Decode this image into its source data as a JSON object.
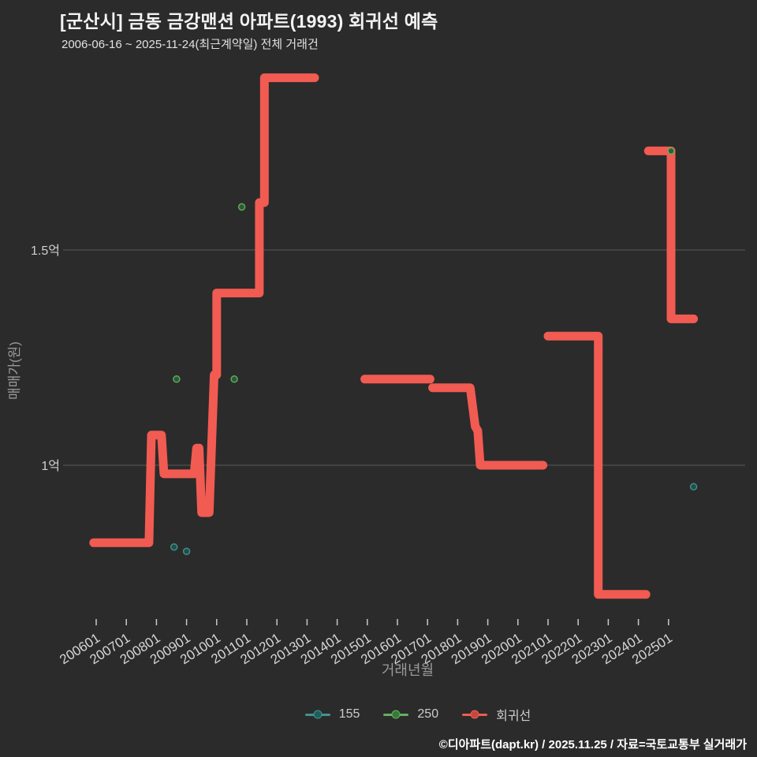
{
  "header": {
    "title": "[군산시] 금동 금강맨션 아파트(1993) 회귀선 예측",
    "subtitle": "2006-06-16 ~ 2025-11-24(최근계약일) 전체 거래건"
  },
  "footer": {
    "text": "©디아파트(dapt.kr) / 2025.11.25 / 자료=국토교통부 실거래가"
  },
  "colors": {
    "background": "#2b2b2b",
    "red": "#f15b52",
    "red_dot": "#c24842",
    "teal": "#45938e",
    "teal_dot": "#1d5f5c",
    "teal_fill": "#1d524d",
    "green": "#63b05f",
    "green_dot": "#377a3b",
    "green_fill": "#2c5c35",
    "grid": "#5a5a5a",
    "tick_mark": "#c9c9c9",
    "tick_text": "#d6d6d6",
    "y_tick_text": "#d0d0d0",
    "axis_title": "#999999",
    "legend_text": "#cccccc"
  },
  "chart_data": {
    "type": "line",
    "title": "[군산시] 금동 금강맨션 아파트(1993) 회귀선 예측",
    "xlabel": "거래년월",
    "ylabel": "매매가(원)",
    "y_unit": "억원",
    "grid": "horizontal-only",
    "legend_position": "bottom-center",
    "y_ticks": [
      {
        "label": "1.5억",
        "value": 1.5
      },
      {
        "label": "1억",
        "value": 1.0
      }
    ],
    "x_ticks": [
      "200601",
      "200701",
      "200801",
      "200901",
      "201001",
      "201101",
      "201201",
      "201301",
      "201401",
      "201501",
      "201601",
      "201701",
      "201801",
      "201901",
      "202001",
      "202101",
      "202201",
      "202301",
      "202401",
      "202501"
    ],
    "series": [
      {
        "name": "155",
        "kind": "scatter",
        "color_key": "teal",
        "points": [
          [
            "2008-08",
            0.81
          ],
          [
            "2009-01",
            0.8
          ],
          [
            "2025-11",
            0.95
          ]
        ]
      },
      {
        "name": "250",
        "kind": "scatter",
        "color_key": "green",
        "points": [
          [
            "2008-09",
            1.2
          ],
          [
            "2010-08",
            1.2
          ],
          [
            "2010-11",
            1.6
          ],
          [
            "2025-02",
            1.73
          ]
        ]
      },
      {
        "name": "회귀선",
        "kind": "step-line",
        "color_key": "red",
        "segments": [
          [
            [
              "2005-12",
              0.82
            ],
            [
              "2007-10",
              0.82
            ],
            [
              "2007-11",
              1.07
            ],
            [
              "2008-03",
              1.07
            ],
            [
              "2008-04",
              0.98
            ],
            [
              "2009-04",
              0.98
            ],
            [
              "2009-05",
              1.04
            ],
            [
              "2009-06",
              1.04
            ],
            [
              "2009-07",
              0.89
            ],
            [
              "2009-10",
              0.89
            ],
            [
              "2009-12",
              1.21
            ],
            [
              "2010-01",
              1.21
            ],
            [
              "2010-01",
              1.4
            ],
            [
              "2011-06",
              1.4
            ],
            [
              "2011-06",
              1.61
            ],
            [
              "2011-08",
              1.61
            ],
            [
              "2011-08",
              1.9
            ],
            [
              "2013-04",
              1.9
            ]
          ],
          [
            [
              "2014-12",
              1.2
            ],
            [
              "2017-02",
              1.2
            ]
          ],
          [
            [
              "2017-03",
              1.18
            ],
            [
              "2018-06",
              1.18
            ],
            [
              "2018-08",
              1.09
            ],
            [
              "2018-09",
              1.08
            ],
            [
              "2018-10",
              1.0
            ],
            [
              "2020-11",
              1.0
            ]
          ],
          [
            [
              "2021-01",
              1.3
            ],
            [
              "2022-09",
              1.3
            ],
            [
              "2022-09",
              0.7
            ],
            [
              "2024-04",
              0.7
            ]
          ],
          [
            [
              "2024-05",
              1.73
            ],
            [
              "2025-02",
              1.73
            ],
            [
              "2025-02",
              1.34
            ],
            [
              "2025-11",
              1.34
            ]
          ]
        ]
      }
    ],
    "legend": [
      {
        "label": "155",
        "color_key": "teal"
      },
      {
        "label": "250",
        "color_key": "green"
      },
      {
        "label": "회귀선",
        "color_key": "red"
      }
    ]
  }
}
